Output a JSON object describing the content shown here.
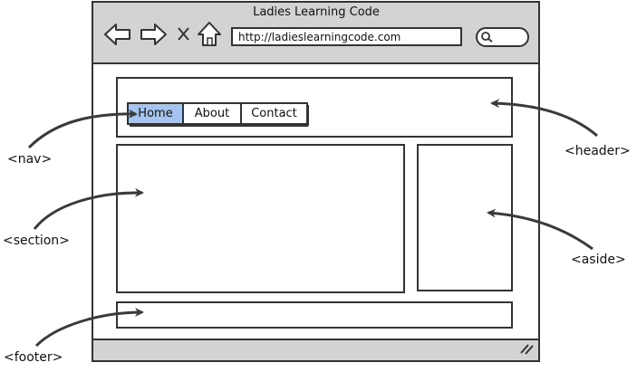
{
  "browser": {
    "title": "Ladies Learning Code",
    "url": "http://ladieslearningcode.com",
    "icons": [
      "back-arrow-icon",
      "forward-arrow-icon",
      "close-icon",
      "home-icon",
      "search-icon",
      "resize-grip-icon"
    ],
    "chrome_color": "#d3d3d3"
  },
  "nav": {
    "items": [
      {
        "label": "Home",
        "active": true
      },
      {
        "label": "About",
        "active": false
      },
      {
        "label": "Contact",
        "active": false
      }
    ],
    "active_color": "#a5c5f0"
  },
  "annotations": {
    "nav": "<nav>",
    "header": "<header>",
    "section": "<section>",
    "aside": "<aside>",
    "footer": "<footer>"
  }
}
